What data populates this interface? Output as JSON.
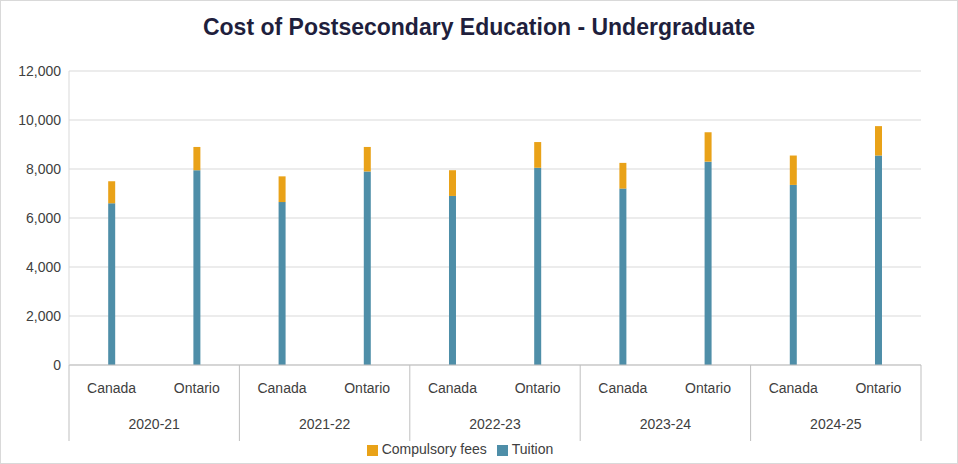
{
  "chart_data": {
    "type": "bar",
    "title": "Cost of Postsecondary Education - Undergraduate",
    "categories": [
      "Canada",
      "Ontario",
      "Canada",
      "Ontario",
      "Canada",
      "Ontario",
      "Canada",
      "Ontario",
      "Canada",
      "Ontario"
    ],
    "category_groups": [
      "2020-21",
      "2021-22",
      "2022-23",
      "2023-24",
      "2024-25"
    ],
    "series": [
      {
        "name": "Tuition",
        "color": "#4e8ea8",
        "values": [
          6600,
          7950,
          6650,
          7900,
          6900,
          8050,
          7200,
          8300,
          7350,
          8550
        ]
      },
      {
        "name": "Compulsory fees",
        "color": "#e9a218",
        "values": [
          900,
          950,
          1050,
          1000,
          1050,
          1050,
          1050,
          1200,
          1200,
          1200
        ]
      }
    ],
    "ylim": [
      0,
      12000
    ],
    "yticks": [
      {
        "value": 0,
        "label": "0"
      },
      {
        "value": 2000,
        "label": "2,000"
      },
      {
        "value": 4000,
        "label": "4,000"
      },
      {
        "value": 6000,
        "label": "6,000"
      },
      {
        "value": 8000,
        "label": "8,000"
      },
      {
        "value": 10000,
        "label": "10,000"
      },
      {
        "value": 12000,
        "label": "12,000"
      }
    ],
    "stacked": true,
    "grid": true,
    "legend": "bottom"
  }
}
